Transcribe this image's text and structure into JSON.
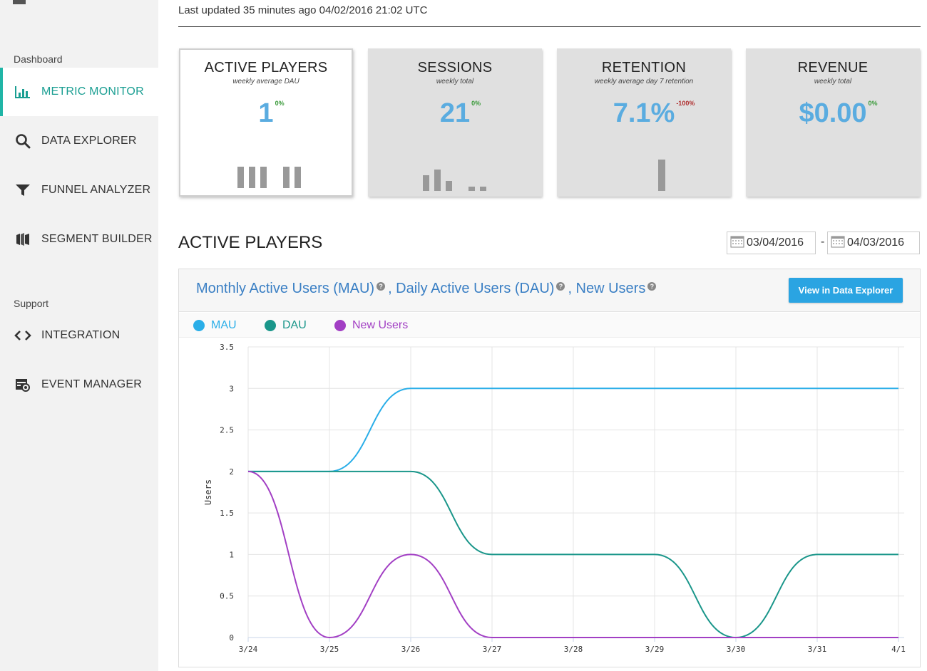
{
  "header": {
    "last_updated": "Last updated 35 minutes ago 04/02/2016 21:02 UTC"
  },
  "sidebar": {
    "sections": [
      {
        "label": "Dashboard",
        "items": [
          {
            "label": "METRIC MONITOR",
            "icon": "bar-chart-icon",
            "active": true
          },
          {
            "label": "DATA EXPLORER",
            "icon": "search-icon",
            "active": false
          },
          {
            "label": "FUNNEL ANALYZER",
            "icon": "funnel-icon",
            "active": false
          },
          {
            "label": "SEGMENT BUILDER",
            "icon": "segments-icon",
            "active": false
          }
        ]
      },
      {
        "label": "Support",
        "items": [
          {
            "label": "INTEGRATION",
            "icon": "code-icon",
            "active": false
          },
          {
            "label": "EVENT MANAGER",
            "icon": "event-manager-icon",
            "active": false
          }
        ]
      }
    ]
  },
  "cards": [
    {
      "title": "ACTIVE PLAYERS",
      "subtitle": "weekly average DAU",
      "value": "1",
      "change": "0%",
      "change_dir": "pos",
      "selected": true
    },
    {
      "title": "SESSIONS",
      "subtitle": "weekly total",
      "value": "21",
      "change": "0%",
      "change_dir": "pos",
      "selected": false
    },
    {
      "title": "RETENTION",
      "subtitle": "weekly average day 7 retention",
      "value": "7.1%",
      "change": "-100%",
      "change_dir": "neg",
      "selected": false
    },
    {
      "title": "REVENUE",
      "subtitle": "weekly total",
      "value": "$0.00",
      "change": "0%",
      "change_dir": "pos",
      "selected": false
    }
  ],
  "section": {
    "title": "ACTIVE PLAYERS",
    "date_from": "03/04/2016",
    "date_to": "04/03/2016",
    "date_separator": "-"
  },
  "chart_panel": {
    "title_parts": [
      "Monthly Active Users (MAU)",
      ", Daily Active Users (DAU)",
      ", New Users"
    ],
    "help_glyph": "?",
    "view_button": "View in Data Explorer"
  },
  "colors": {
    "accent": "#1fb5a6",
    "value_blue": "#5aace0",
    "mau": "#2aaee8",
    "dau": "#1a968a",
    "new_users": "#a23fc4"
  },
  "chart_data": {
    "type": "line",
    "x": [
      "3/24",
      "3/25",
      "3/26",
      "3/27",
      "3/28",
      "3/29",
      "3/30",
      "3/31",
      "4/1"
    ],
    "series": [
      {
        "name": "MAU",
        "color": "#2aaee8",
        "values": [
          2,
          2,
          3,
          3,
          3,
          3,
          3,
          3,
          3
        ]
      },
      {
        "name": "DAU",
        "color": "#1a968a",
        "values": [
          2,
          2,
          2,
          1,
          1,
          1,
          0,
          1,
          1
        ]
      },
      {
        "name": "New Users",
        "color": "#a23fc4",
        "values": [
          2,
          0,
          1,
          0,
          0,
          0,
          0,
          0,
          0
        ]
      }
    ],
    "ylabel": "Users",
    "ylim": [
      0,
      3.5
    ],
    "yticks": [
      "0",
      "0.5",
      "1",
      "1.5",
      "2",
      "2.5",
      "3",
      "3.5"
    ],
    "grid": true,
    "legend": "top-left"
  }
}
